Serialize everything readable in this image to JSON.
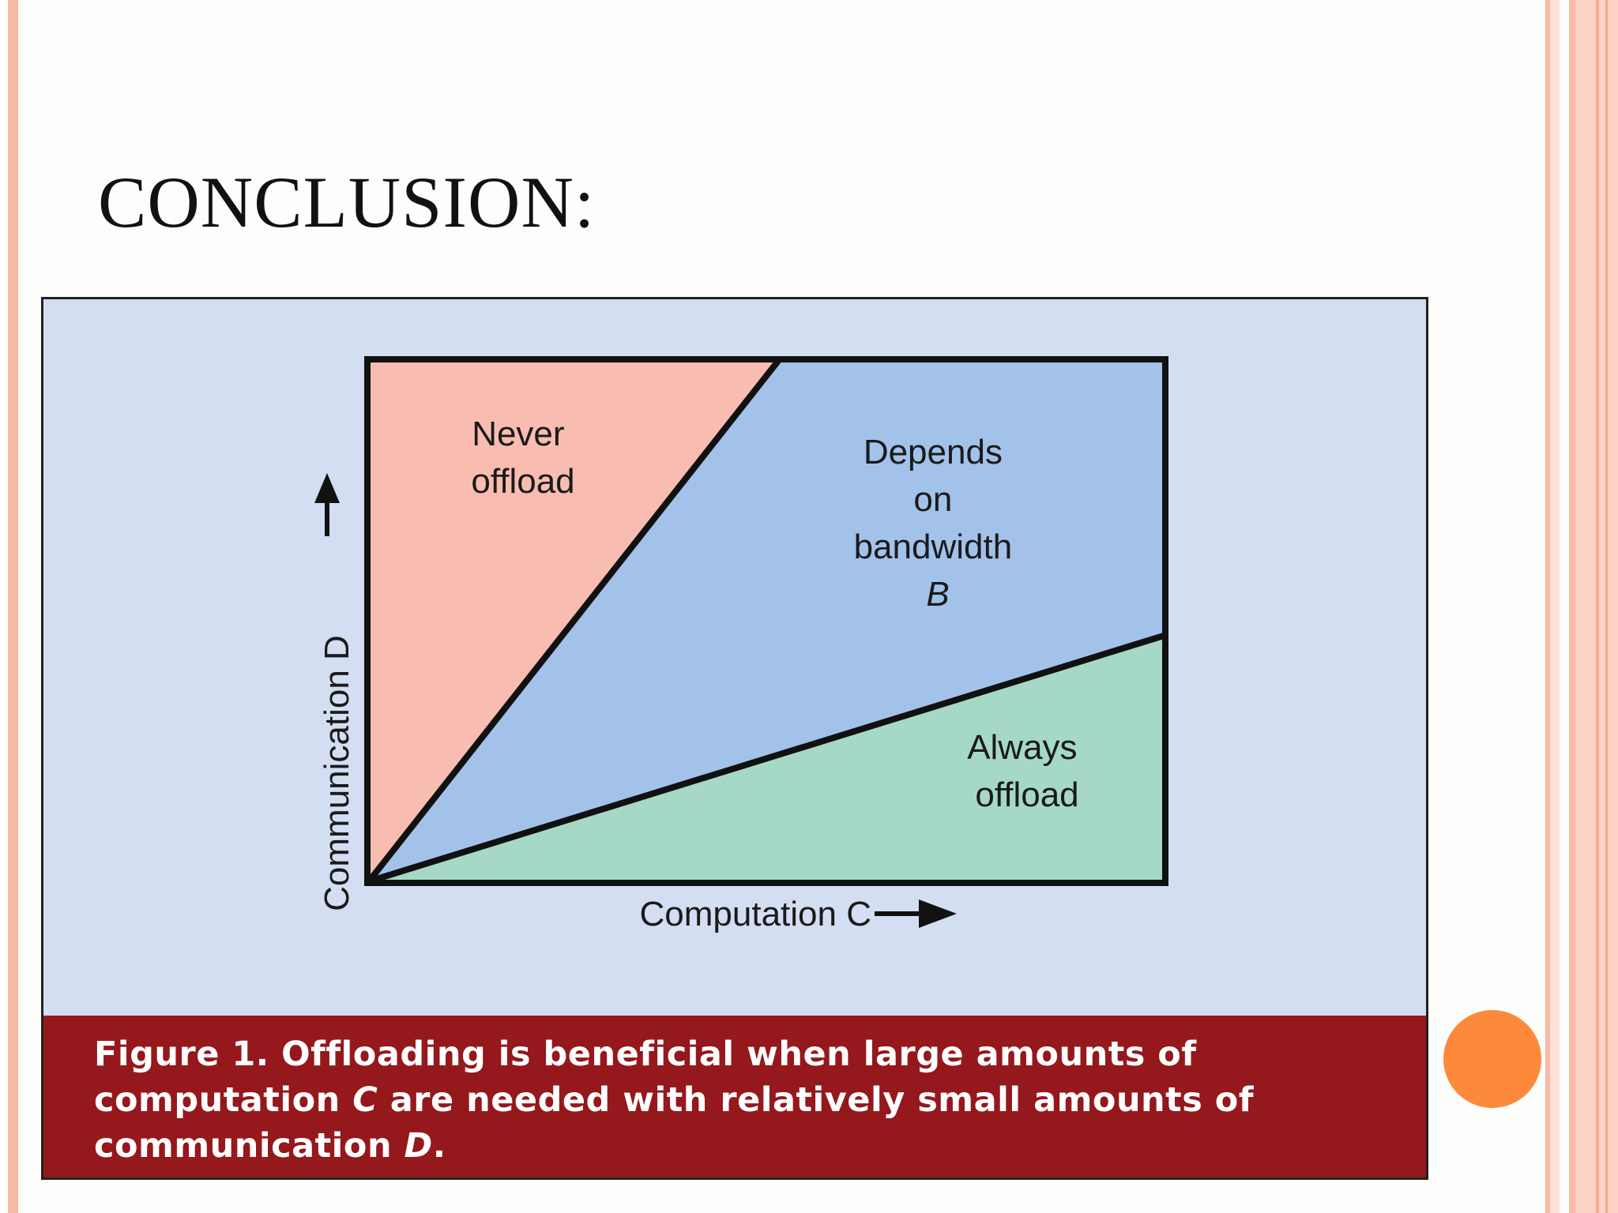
{
  "slide": {
    "title": "CONCLUSION:"
  },
  "figure": {
    "regions": {
      "never_offload": [
        "Never",
        "offload"
      ],
      "depends_on_bandwidth": [
        "Depends",
        "on",
        "bandwidth",
        "B"
      ],
      "always_offload": [
        "Always",
        "offload"
      ]
    },
    "axes": {
      "x_label": "Computation C",
      "y_label": "Communication D"
    },
    "colors": {
      "never_offload": "#f8bdb0",
      "depends_on_bandwidth": "#a3c2ea",
      "always_offload": "#a5d9c6",
      "panel_background": "#d4def2",
      "caption_band": "#95181c"
    },
    "caption": {
      "prefix": "Figure 1. Offloading is beneficial when large amounts of computation ",
      "var_c": "C",
      "middle": " are needed with relatively small amounts of communication ",
      "var_d": "D",
      "suffix": "."
    }
  },
  "decor": {
    "accent_dot_color": "#fc8a3a"
  }
}
